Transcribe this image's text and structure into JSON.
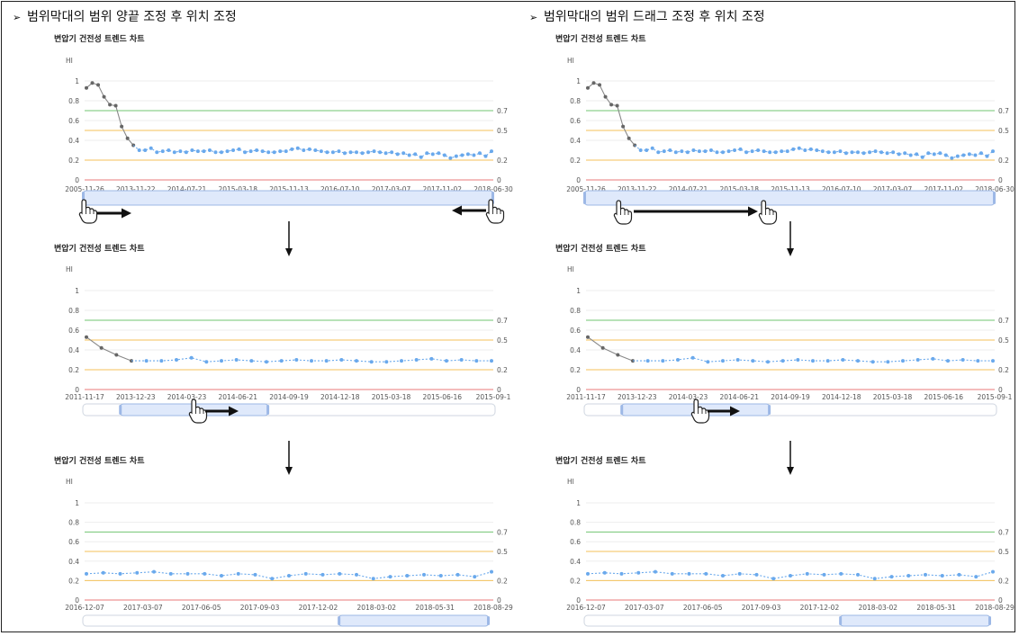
{
  "headings": {
    "left": "범위막대의 범위 양끝 조정 후 위치 조정",
    "right": "범위막대의 범위 드래그 조정 후 위치 조정",
    "bullet": "➢"
  },
  "colors": {
    "green": "#72c472",
    "orange": "#f5c25a",
    "red": "#ea7a7a",
    "blue": "#6aa9ec",
    "gray": "#888888",
    "slider": "#dfe9fb"
  },
  "chart_data": [
    {
      "type": "line",
      "title": "변압기 건전성 트렌드 차트",
      "ylabel": "HI",
      "ylim": [
        0,
        1
      ],
      "yticks": [
        0,
        0.2,
        0.4,
        0.6,
        0.8,
        1
      ],
      "thresholds": [
        {
          "value": 0.7,
          "label": "0.7",
          "color": "green"
        },
        {
          "value": 0.5,
          "label": "0.5",
          "color": "orange"
        },
        {
          "value": 0.2,
          "label": "0.2",
          "color": "orange"
        },
        {
          "value": 0,
          "label": "0",
          "color": "red"
        }
      ],
      "xticks": [
        "2005-11-26",
        "2013-11-22",
        "2014-07-21",
        "2015-03-18",
        "2015-11-13",
        "2016-07-10",
        "2017-03-07",
        "2017-11-02",
        "2018-06-30"
      ],
      "series": [
        {
          "color": "gray",
          "values": [
            0.93,
            0.98,
            0.96,
            0.84,
            0.76,
            0.75,
            0.54,
            0.42,
            0.35
          ]
        },
        {
          "color": "blue",
          "values": [
            0.3,
            0.3,
            0.32,
            0.28,
            0.29,
            0.3,
            0.28,
            0.29,
            0.28,
            0.3,
            0.29,
            0.29,
            0.3,
            0.28,
            0.28,
            0.29,
            0.3,
            0.31,
            0.28,
            0.29,
            0.3,
            0.29,
            0.28,
            0.28,
            0.29,
            0.29,
            0.31,
            0.32,
            0.3,
            0.31,
            0.3,
            0.29,
            0.28,
            0.28,
            0.29,
            0.27,
            0.28,
            0.28,
            0.27,
            0.28,
            0.29,
            0.28,
            0.27,
            0.28,
            0.26,
            0.27,
            0.25,
            0.26,
            0.23,
            0.27,
            0.26,
            0.27,
            0.25,
            0.22,
            0.24,
            0.25,
            0.26,
            0.25,
            0.27,
            0.24,
            0.29
          ]
        }
      ],
      "slider": {
        "start": 0.0,
        "end": 1.0
      }
    },
    {
      "type": "line",
      "title": "변압기 건전성 트렌드 차트",
      "ylabel": "HI",
      "ylim": [
        0,
        1
      ],
      "yticks": [
        0,
        0.2,
        0.4,
        0.6,
        0.8,
        1
      ],
      "thresholds": [
        {
          "value": 0.7,
          "label": "0.7",
          "color": "green"
        },
        {
          "value": 0.5,
          "label": "0.5",
          "color": "orange"
        },
        {
          "value": 0.2,
          "label": "0.2",
          "color": "orange"
        },
        {
          "value": 0,
          "label": "0",
          "color": "red"
        }
      ],
      "xticks": [
        "2011-11-17",
        "2013-12-23",
        "2014-03-23",
        "2014-06-21",
        "2014-09-19",
        "2014-12-18",
        "2015-03-18",
        "2015-06-16",
        "2015-09-1"
      ],
      "series": [
        {
          "color": "gray",
          "values": [
            0.53,
            0.42,
            0.35,
            0.29
          ]
        },
        {
          "color": "blue",
          "values": [
            0.29,
            0.29,
            0.3,
            0.32,
            0.28,
            0.29,
            0.3,
            0.29,
            0.28,
            0.29,
            0.3,
            0.29,
            0.29,
            0.3,
            0.29,
            0.28,
            0.28,
            0.29,
            0.3,
            0.31,
            0.29,
            0.3,
            0.29,
            0.29
          ]
        }
      ],
      "slider": {
        "start": 0.09,
        "end": 0.45
      }
    },
    {
      "type": "line",
      "title": "변압기 건전성 트렌드 차트",
      "ylabel": "HI",
      "ylim": [
        0,
        1
      ],
      "yticks": [
        0,
        0.2,
        0.4,
        0.6,
        0.8,
        1
      ],
      "thresholds": [
        {
          "value": 0.7,
          "label": "0.7",
          "color": "green"
        },
        {
          "value": 0.5,
          "label": "0.5",
          "color": "orange"
        },
        {
          "value": 0.2,
          "label": "0.2",
          "color": "orange"
        },
        {
          "value": 0,
          "label": "0",
          "color": "red"
        }
      ],
      "xticks": [
        "2016-12-07",
        "2017-03-07",
        "2017-06-05",
        "2017-09-03",
        "2017-12-02",
        "2018-03-02",
        "2018-05-31",
        "2018-08-29"
      ],
      "series": [
        {
          "color": "blue",
          "values": [
            0.27,
            0.28,
            0.27,
            0.28,
            0.29,
            0.27,
            0.27,
            0.27,
            0.25,
            0.27,
            0.26,
            0.22,
            0.25,
            0.27,
            0.26,
            0.27,
            0.26,
            0.22,
            0.24,
            0.25,
            0.26,
            0.25,
            0.26,
            0.24,
            0.29
          ]
        }
      ],
      "slider": {
        "start": 0.63,
        "end": 1.0
      }
    }
  ]
}
